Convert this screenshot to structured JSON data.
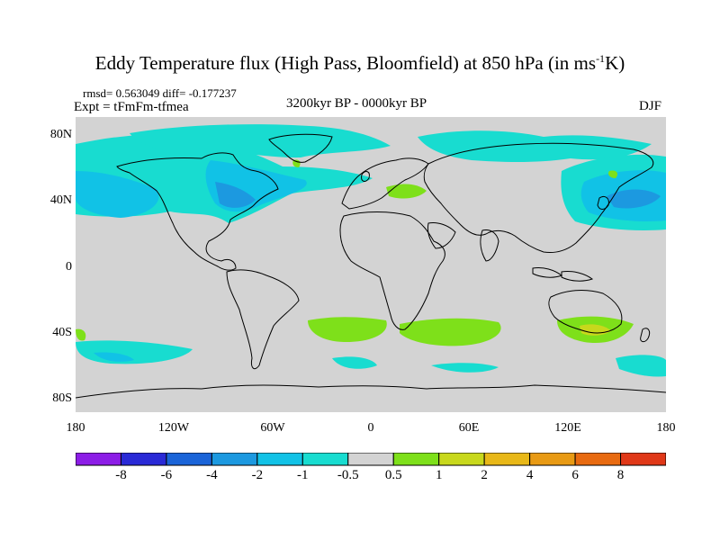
{
  "header": {
    "title_main": "Eddy Temperature flux (High Pass, Bloomfield) at 850 hPa (in ms",
    "title_sup": "-1",
    "title_end": "K)",
    "rmsd_line": "rmsd= 0.563049 diff= -0.177237",
    "expt_line": "Expt = tFmFm-tfmea",
    "period": "3200kyr BP - 0000kyr BP",
    "season": "DJF"
  },
  "map": {
    "projection": "cylindrical-equidistant",
    "lon_range": [
      -180,
      180
    ],
    "lat_range": [
      -90,
      90
    ],
    "lat_ticks": [
      "80N",
      "40N",
      "0",
      "40S",
      "80S"
    ],
    "lon_ticks": [
      "180",
      "120W",
      "60W",
      "0",
      "60E",
      "120E",
      "180"
    ],
    "background_color": "#d3d3d3",
    "coastline_color": "#000000"
  },
  "colorbar": {
    "colors": [
      "#8c1de6",
      "#2a2ad6",
      "#1a64d8",
      "#1c99e0",
      "#11c2e6",
      "#18dcd0",
      "#d3d3d3",
      "#7ee01a",
      "#c8d81c",
      "#e8b818",
      "#e89a14",
      "#e86a10",
      "#e03818"
    ],
    "labels": [
      "-8",
      "-6",
      "-4",
      "-2",
      "-1",
      "-0.5",
      "0.5",
      "1",
      "2",
      "4",
      "6",
      "8"
    ]
  }
}
